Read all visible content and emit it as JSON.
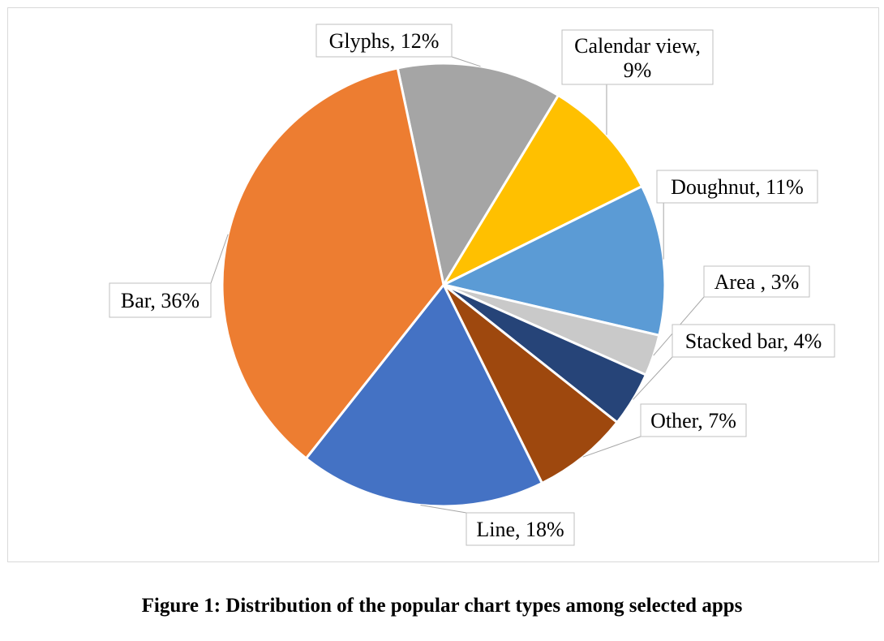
{
  "caption": "Figure 1: Distribution of the popular chart types among selected apps",
  "chart_data": {
    "type": "pie",
    "unit": "%",
    "slices": [
      {
        "label": "Glyphs, 12%",
        "name": "Glyphs",
        "value": 12,
        "color": "#a5a5a5"
      },
      {
        "label": "Calendar view, 9%",
        "name": "Calendar view",
        "value": 9,
        "color": "#ffc000"
      },
      {
        "label": "Doughnut, 11%",
        "name": "Doughnut",
        "value": 11,
        "color": "#5b9bd5"
      },
      {
        "label": "Area , 3%",
        "name": "Area",
        "value": 3,
        "color": "#c9c9c9"
      },
      {
        "label": "Stacked bar, 4%",
        "name": "Stacked bar",
        "value": 4,
        "color": "#264478"
      },
      {
        "label": "Other, 7%",
        "name": "Other",
        "value": 7,
        "color": "#9e480e"
      },
      {
        "label": "Line, 18%",
        "name": "Line",
        "value": 18,
        "color": "#4472c4"
      },
      {
        "label": "Bar, 36%",
        "name": "Bar",
        "value": 36,
        "color": "#ed7d31"
      }
    ],
    "start_angle_deg": -12,
    "direction": "clockwise",
    "legend": "none",
    "data_labels": "callouts"
  }
}
